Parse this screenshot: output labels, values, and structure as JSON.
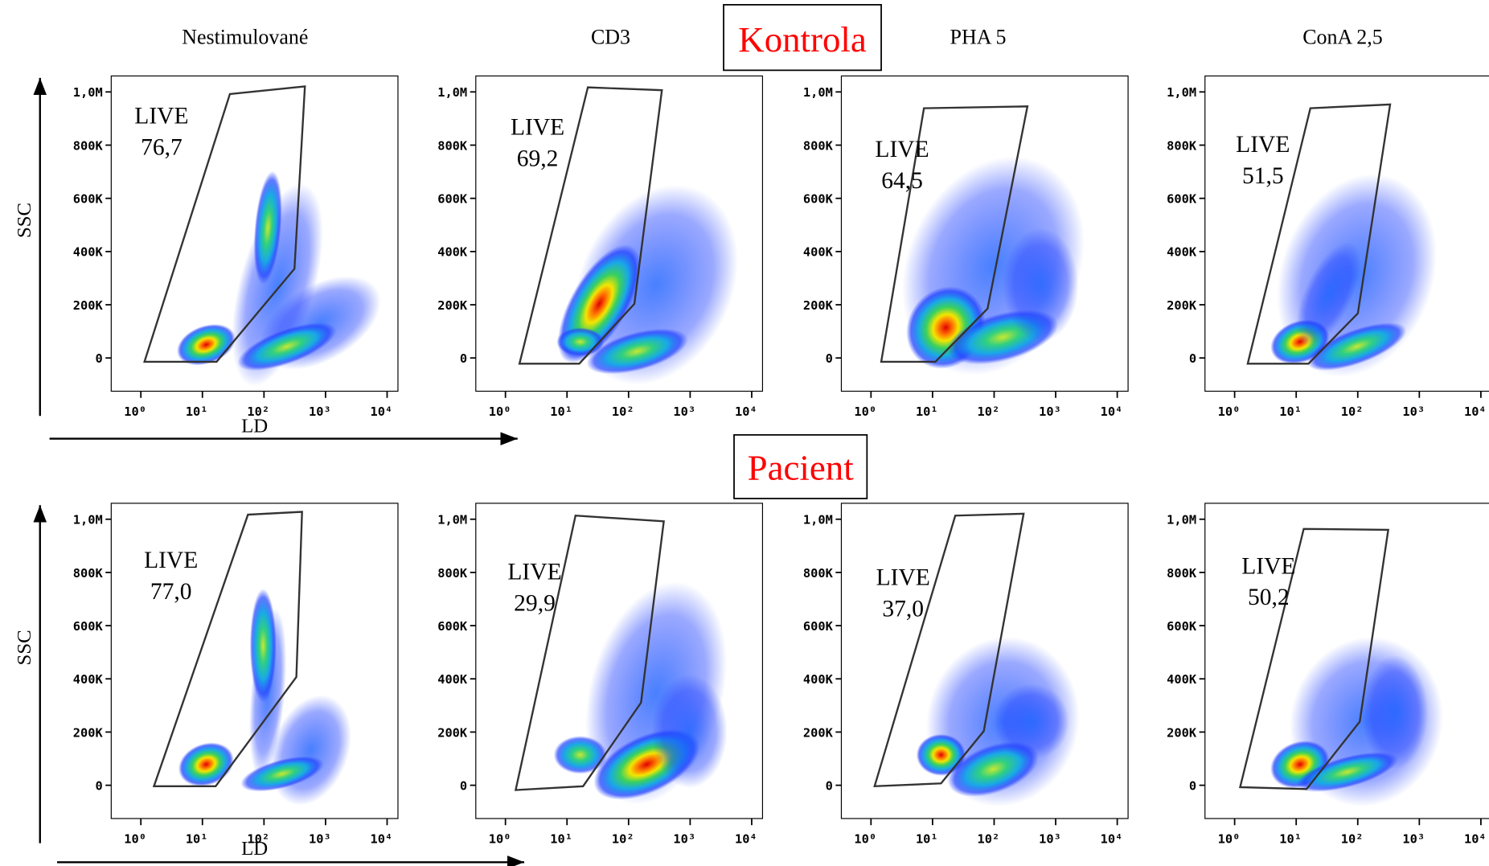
{
  "group_labels": [
    "Kontrola",
    "Pacient"
  ],
  "chart_data": [
    {
      "type": "scatter",
      "title": "Nestimulované",
      "xlabel": "LD",
      "ylabel": "SSC",
      "xscale": "log",
      "xlim": [
        0.33,
        15000
      ],
      "ylim": [
        -125000,
        1060000
      ],
      "xticks": [
        {
          "value": 1,
          "label": "10⁰"
        },
        {
          "value": 10,
          "label": "10¹"
        },
        {
          "value": 100,
          "label": "10²"
        },
        {
          "value": 1000,
          "label": "10³"
        },
        {
          "value": 10000,
          "label": "10⁴"
        }
      ],
      "yticks": [
        0,
        {
          "value": 200000,
          "label": "200K"
        },
        {
          "value": 400000,
          "label": "400K"
        },
        {
          "value": 600000,
          "label": "600K"
        },
        {
          "value": 800000,
          "label": "800K"
        },
        {
          "value": 1000000,
          "label": "1,0M"
        }
      ],
      "gate": {
        "name": "LIVE",
        "percent": "76,7"
      }
    },
    {
      "type": "scatter",
      "title": "CD3",
      "xscale": "log",
      "xlim": [
        0.33,
        15000
      ],
      "ylim": [
        -125000,
        1060000
      ],
      "xticks": [
        {
          "value": 1,
          "label": "10⁰"
        },
        {
          "value": 10,
          "label": "10¹"
        },
        {
          "value": 100,
          "label": "10²"
        },
        {
          "value": 1000,
          "label": "10³"
        },
        {
          "value": 10000,
          "label": "10⁴"
        }
      ],
      "yticks": [
        0,
        {
          "value": 200000,
          "label": "200K"
        },
        {
          "value": 400000,
          "label": "400K"
        },
        {
          "value": 600000,
          "label": "600K"
        },
        {
          "value": 800000,
          "label": "800K"
        },
        {
          "value": 1000000,
          "label": "1,0M"
        }
      ],
      "gate": {
        "name": "LIVE",
        "percent": "69,2"
      }
    },
    {
      "type": "scatter",
      "title": "PHA 5",
      "xscale": "log",
      "xlim": [
        0.33,
        15000
      ],
      "ylim": [
        -125000,
        1060000
      ],
      "xticks": [
        {
          "value": 1,
          "label": "10⁰"
        },
        {
          "value": 10,
          "label": "10¹"
        },
        {
          "value": 100,
          "label": "10²"
        },
        {
          "value": 1000,
          "label": "10³"
        },
        {
          "value": 10000,
          "label": "10⁴"
        }
      ],
      "yticks": [
        0,
        {
          "value": 200000,
          "label": "200K"
        },
        {
          "value": 400000,
          "label": "400K"
        },
        {
          "value": 600000,
          "label": "600K"
        },
        {
          "value": 800000,
          "label": "800K"
        },
        {
          "value": 1000000,
          "label": "1,0M"
        }
      ],
      "gate": {
        "name": "LIVE",
        "percent": "64,5"
      }
    },
    {
      "type": "scatter",
      "title": "ConA 2,5",
      "xscale": "log",
      "xlim": [
        0.33,
        15000
      ],
      "ylim": [
        -125000,
        1060000
      ],
      "xticks": [
        {
          "value": 1,
          "label": "10⁰"
        },
        {
          "value": 10,
          "label": "10¹"
        },
        {
          "value": 100,
          "label": "10²"
        },
        {
          "value": 1000,
          "label": "10³"
        },
        {
          "value": 10000,
          "label": "10⁴"
        }
      ],
      "yticks": [
        0,
        {
          "value": 200000,
          "label": "200K"
        },
        {
          "value": 400000,
          "label": "400K"
        },
        {
          "value": 600000,
          "label": "600K"
        },
        {
          "value": 800000,
          "label": "800K"
        },
        {
          "value": 1000000,
          "label": "1,0M"
        }
      ],
      "gate": {
        "name": "LIVE",
        "percent": "51,5"
      }
    },
    {
      "type": "scatter",
      "xlabel": "LD",
      "ylabel": "SSC",
      "xscale": "log",
      "xlim": [
        0.33,
        15000
      ],
      "ylim": [
        -125000,
        1060000
      ],
      "xticks": [
        {
          "value": 1,
          "label": "10⁰"
        },
        {
          "value": 10,
          "label": "10¹"
        },
        {
          "value": 100,
          "label": "10²"
        },
        {
          "value": 1000,
          "label": "10³"
        },
        {
          "value": 10000,
          "label": "10⁴"
        }
      ],
      "yticks": [
        0,
        {
          "value": 200000,
          "label": "200K"
        },
        {
          "value": 400000,
          "label": "400K"
        },
        {
          "value": 600000,
          "label": "600K"
        },
        {
          "value": 800000,
          "label": "800K"
        },
        {
          "value": 1000000,
          "label": "1,0M"
        }
      ],
      "gate": {
        "name": "LIVE",
        "percent": "77,0"
      }
    },
    {
      "type": "scatter",
      "xscale": "log",
      "xlim": [
        0.33,
        15000
      ],
      "ylim": [
        -125000,
        1060000
      ],
      "xticks": [
        {
          "value": 1,
          "label": "10⁰"
        },
        {
          "value": 10,
          "label": "10¹"
        },
        {
          "value": 100,
          "label": "10²"
        },
        {
          "value": 1000,
          "label": "10³"
        },
        {
          "value": 10000,
          "label": "10⁴"
        }
      ],
      "yticks": [
        0,
        {
          "value": 200000,
          "label": "200K"
        },
        {
          "value": 400000,
          "label": "400K"
        },
        {
          "value": 600000,
          "label": "600K"
        },
        {
          "value": 800000,
          "label": "800K"
        },
        {
          "value": 1000000,
          "label": "1,0M"
        }
      ],
      "gate": {
        "name": "LIVE",
        "percent": "29,9"
      }
    },
    {
      "type": "scatter",
      "xscale": "log",
      "xlim": [
        0.33,
        15000
      ],
      "ylim": [
        -125000,
        1060000
      ],
      "xticks": [
        {
          "value": 1,
          "label": "10⁰"
        },
        {
          "value": 10,
          "label": "10¹"
        },
        {
          "value": 100,
          "label": "10²"
        },
        {
          "value": 1000,
          "label": "10³"
        },
        {
          "value": 10000,
          "label": "10⁴"
        }
      ],
      "yticks": [
        0,
        {
          "value": 200000,
          "label": "200K"
        },
        {
          "value": 400000,
          "label": "400K"
        },
        {
          "value": 600000,
          "label": "600K"
        },
        {
          "value": 800000,
          "label": "800K"
        },
        {
          "value": 1000000,
          "label": "1,0M"
        }
      ],
      "gate": {
        "name": "LIVE",
        "percent": "37,0"
      }
    },
    {
      "type": "scatter",
      "xscale": "log",
      "xlim": [
        0.33,
        15000
      ],
      "ylim": [
        -125000,
        1060000
      ],
      "xticks": [
        {
          "value": 1,
          "label": "10⁰"
        },
        {
          "value": 10,
          "label": "10¹"
        },
        {
          "value": 100,
          "label": "10²"
        },
        {
          "value": 1000,
          "label": "10³"
        },
        {
          "value": 10000,
          "label": "10⁴"
        }
      ],
      "yticks": [
        0,
        {
          "value": 200000,
          "label": "200K"
        },
        {
          "value": 400000,
          "label": "400K"
        },
        {
          "value": 600000,
          "label": "600K"
        },
        {
          "value": 800000,
          "label": "800K"
        },
        {
          "value": 1000000,
          "label": "1,0M"
        }
      ],
      "gate": {
        "name": "LIVE",
        "percent": "50,2"
      }
    }
  ]
}
